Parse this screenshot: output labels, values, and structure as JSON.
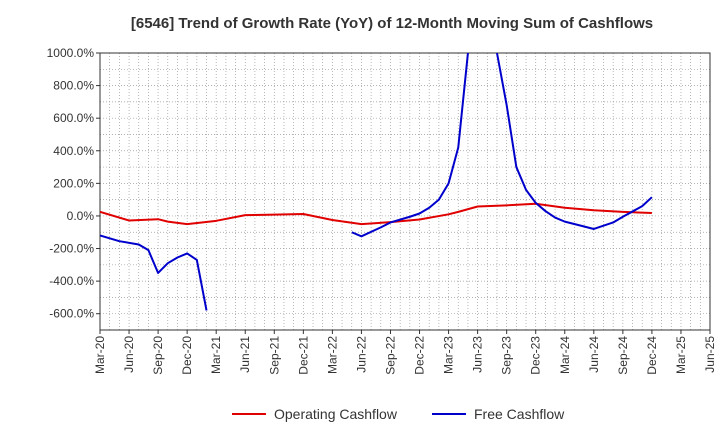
{
  "chart_data": {
    "type": "line",
    "title": "[6546]  Trend of Growth Rate (YoY) of 12-Month Moving Sum of Cashflows",
    "xlabel": "",
    "ylabel": "",
    "ylim": [
      -700,
      1000
    ],
    "y_ticks": [
      1000,
      800,
      600,
      400,
      200,
      0,
      -200,
      -400,
      -600
    ],
    "y_tick_labels": [
      "1000.0%",
      "800.0%",
      "600.0%",
      "400.0%",
      "200.0%",
      "0.0%",
      "-200.0%",
      "-400.0%",
      "-600.0%"
    ],
    "x_tick_labels": [
      "Mar-20",
      "Jun-20",
      "Sep-20",
      "Dec-20",
      "Mar-21",
      "Jun-21",
      "Sep-21",
      "Dec-21",
      "Mar-22",
      "Jun-22",
      "Sep-22",
      "Dec-22",
      "Mar-23",
      "Jun-23",
      "Sep-23",
      "Dec-23",
      "Mar-24",
      "Jun-24",
      "Sep-24",
      "Dec-24",
      "Mar-25",
      "Jun-25"
    ],
    "x_range": [
      "2020-03",
      "2025-06"
    ],
    "grid": true,
    "legend_position": "bottom",
    "series": [
      {
        "name": "Operating Cashflow",
        "color": "#e00000",
        "points": [
          [
            "2020-03",
            25
          ],
          [
            "2020-06",
            -28
          ],
          [
            "2020-09",
            -20
          ],
          [
            "2020-10",
            -35
          ],
          [
            "2020-12",
            -50
          ],
          [
            "2021-03",
            -30
          ],
          [
            "2021-06",
            5
          ],
          [
            "2021-09",
            8
          ],
          [
            "2021-12",
            12
          ],
          [
            "2022-03",
            -25
          ],
          [
            "2022-06",
            -50
          ],
          [
            "2022-09",
            -38
          ],
          [
            "2022-12",
            -22
          ],
          [
            "2023-03",
            10
          ],
          [
            "2023-04",
            25
          ],
          [
            "2023-06",
            58
          ],
          [
            "2023-09",
            65
          ],
          [
            "2023-12",
            75
          ],
          [
            "2024-03",
            50
          ],
          [
            "2024-06",
            35
          ],
          [
            "2024-09",
            25
          ],
          [
            "2024-12",
            18
          ]
        ]
      },
      {
        "name": "Free Cashflow",
        "color": "#0000cc",
        "segments": [
          [
            [
              "2020-03",
              -120
            ],
            [
              "2020-05",
              -155
            ],
            [
              "2020-07",
              -175
            ],
            [
              "2020-08",
              -210
            ],
            [
              "2020-09",
              -350
            ],
            [
              "2020-10",
              -290
            ],
            [
              "2020-11",
              -255
            ],
            [
              "2020-12",
              -230
            ],
            [
              "2021-01",
              -270
            ],
            [
              "2021-02",
              -580
            ]
          ],
          [
            [
              "2022-05",
              -100
            ],
            [
              "2022-06",
              -125
            ],
            [
              "2022-08",
              -70
            ],
            [
              "2022-09",
              -40
            ],
            [
              "2022-11",
              -5
            ],
            [
              "2022-12",
              15
            ],
            [
              "2023-01",
              50
            ],
            [
              "2023-02",
              100
            ],
            [
              "2023-03",
              200
            ],
            [
              "2023-04",
              420
            ],
            [
              "2023-05",
              1000
            ]
          ],
          [
            [
              "2023-08",
              1000
            ],
            [
              "2023-09",
              680
            ],
            [
              "2023-10",
              300
            ],
            [
              "2023-11",
              160
            ],
            [
              "2023-12",
              80
            ],
            [
              "2024-01",
              30
            ],
            [
              "2024-02",
              -10
            ],
            [
              "2024-03",
              -35
            ],
            [
              "2024-05",
              -65
            ],
            [
              "2024-06",
              -80
            ],
            [
              "2024-08",
              -40
            ],
            [
              "2024-09",
              -5
            ],
            [
              "2024-11",
              60
            ],
            [
              "2024-12",
              115
            ]
          ]
        ]
      }
    ]
  }
}
